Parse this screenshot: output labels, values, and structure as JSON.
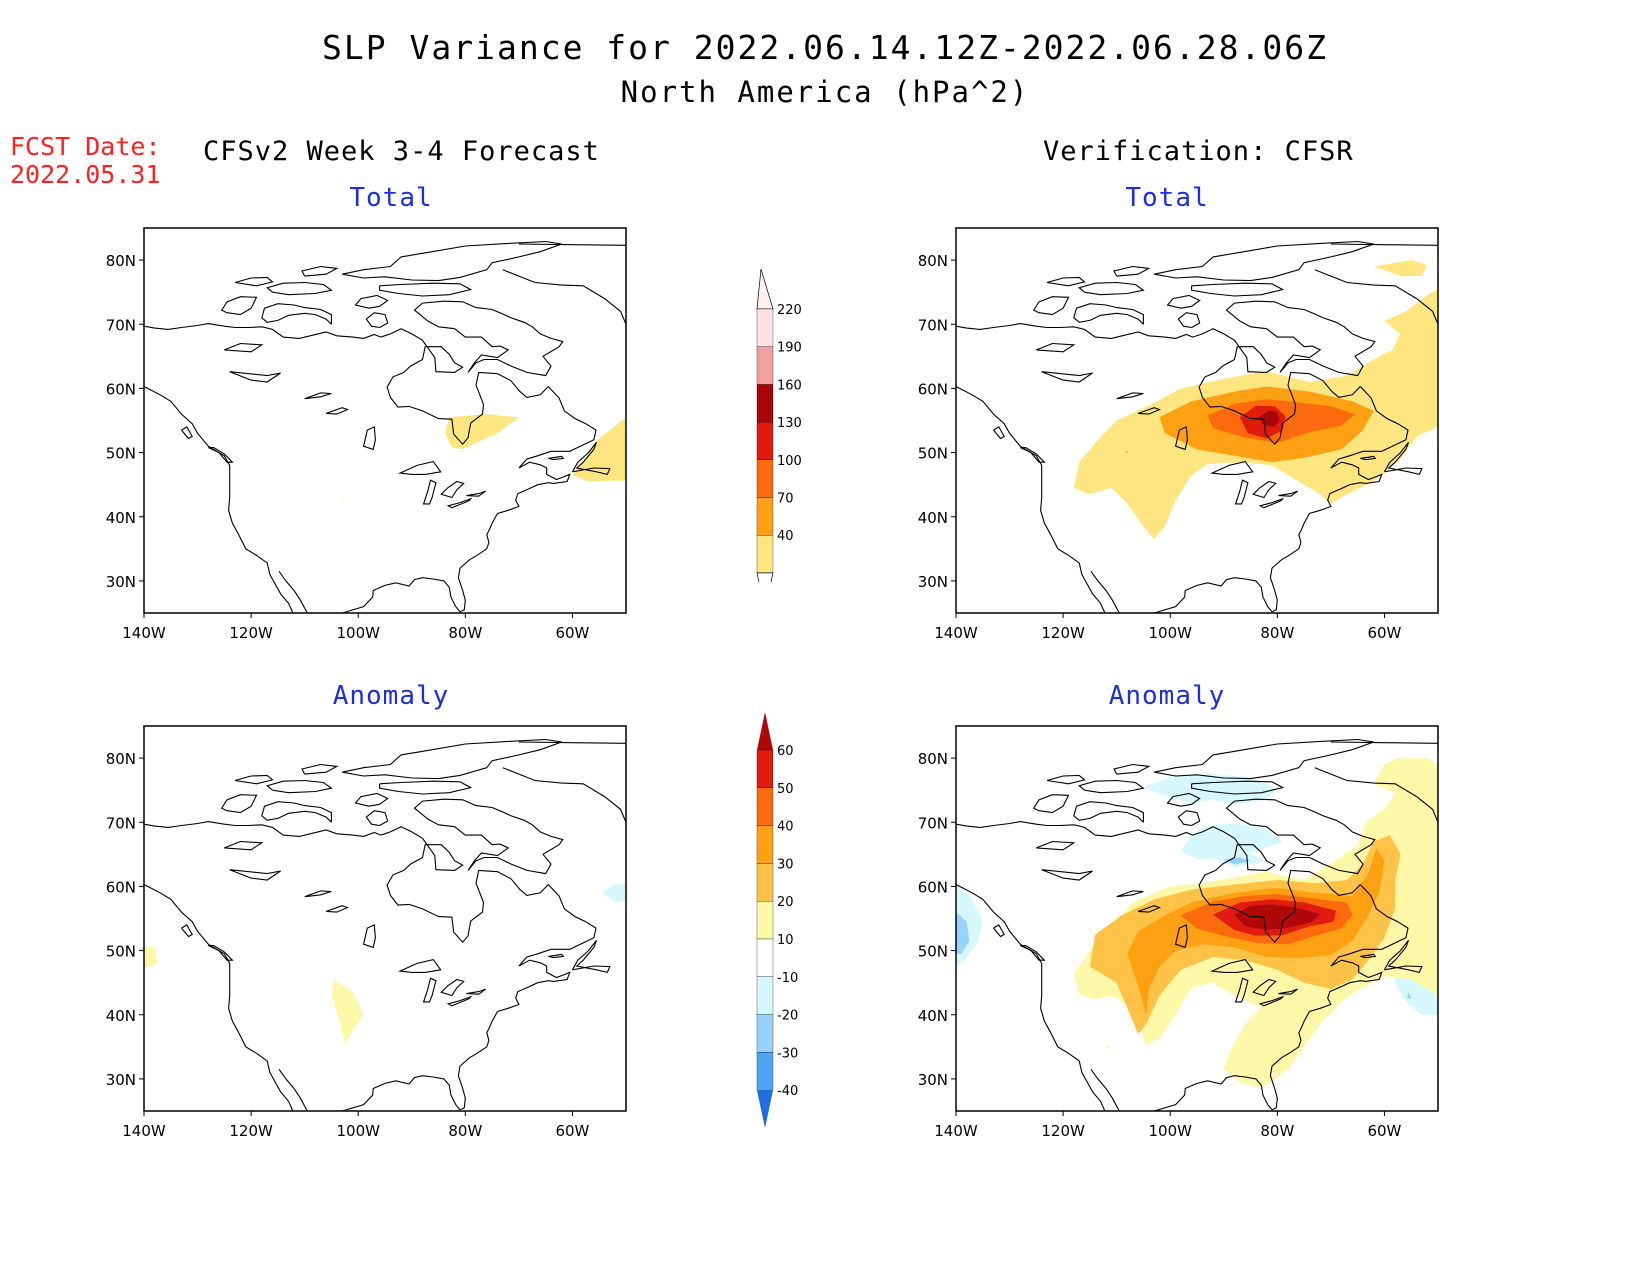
{
  "title_line1": "SLP Variance for 2022.06.14.12Z-2022.06.28.06Z",
  "title_line2": "North America (hPa^2)",
  "fcst_label": "FCST Date:",
  "fcst_date": "2022.05.31",
  "left_header": "CFSv2 Week 3-4 Forecast",
  "right_header": "Verification: CFSR",
  "panels": {
    "fc_total": {
      "title": "Total"
    },
    "fc_anom": {
      "title": "Anomaly"
    },
    "vf_total": {
      "title": "Total"
    },
    "vf_anom": {
      "title": "Anomaly"
    }
  },
  "axes": {
    "lat_labels": [
      "80N",
      "70N",
      "60N",
      "50N",
      "40N",
      "30N"
    ],
    "lon_labels": [
      "140W",
      "120W",
      "100W",
      "80W",
      "60W"
    ],
    "lat_values": [
      80,
      70,
      60,
      50,
      40,
      30
    ],
    "lon_values": [
      -140,
      -120,
      -100,
      -80,
      -60
    ],
    "lon_range": [
      -140,
      -50
    ],
    "lat_range": [
      25,
      85
    ]
  },
  "total_colorbar": {
    "levels": [
      "40",
      "70",
      "100",
      "130",
      "160",
      "190",
      "220"
    ],
    "colors": [
      "#fde680",
      "#fda012",
      "#fb6a0c",
      "#e11b0c",
      "#a80508",
      "#f0a0a0",
      "#fde0e0"
    ]
  },
  "anomaly_colorbar": {
    "levels": [
      "60",
      "50",
      "40",
      "30",
      "20",
      "10",
      "-10",
      "-20",
      "-30",
      "-40"
    ],
    "colors": [
      "#b00808",
      "#e01c10",
      "#fb6a0c",
      "#fda012",
      "#fdc246",
      "#fdf8a8",
      "#ffffff",
      "#d6f8fc",
      "#96d2fa",
      "#50a4f4",
      "#1e6ee0"
    ]
  },
  "map_style": {
    "coastline_color": "#000000",
    "frame_color": "#000000"
  }
}
